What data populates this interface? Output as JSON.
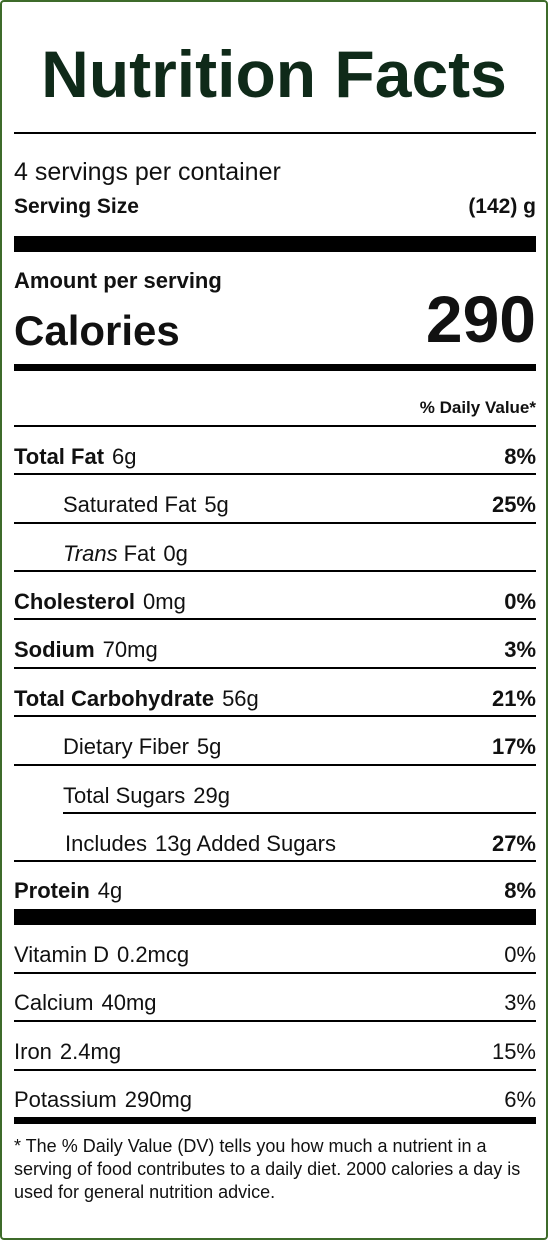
{
  "title": "Nutrition Facts",
  "servings_per_container": "4 servings per container",
  "serving_size": {
    "label": "Serving Size",
    "value": "(142) g"
  },
  "amount_per_serving": "Amount per serving",
  "calories": {
    "label": "Calories",
    "value": "290"
  },
  "daily_value_header": "% Daily Value*",
  "nutrients": {
    "total_fat": {
      "label": "Total Fat",
      "amount": "6g",
      "dv": "8%"
    },
    "saturated_fat": {
      "label": "Saturated Fat",
      "amount": "5g",
      "dv": "25%"
    },
    "trans_fat": {
      "label_italic": "Trans",
      "label": "Fat",
      "amount": "0g"
    },
    "cholesterol": {
      "label": "Cholesterol",
      "amount": "0mg",
      "dv": "0%"
    },
    "sodium": {
      "label": "Sodium",
      "amount": "70mg",
      "dv": "3%"
    },
    "total_carbohydrate": {
      "label": "Total Carbohydrate",
      "amount": "56g",
      "dv": "21%"
    },
    "dietary_fiber": {
      "label": "Dietary Fiber",
      "amount": "5g",
      "dv": "17%"
    },
    "total_sugars": {
      "label": "Total Sugars",
      "amount": "29g"
    },
    "added_sugars": {
      "label_prefix": "Includes",
      "text": "13g Added Sugars",
      "dv": "27%"
    },
    "protein": {
      "label": "Protein",
      "amount": "4g",
      "dv": "8%"
    }
  },
  "vitamins": {
    "vitamin_d": {
      "label": "Vitamin D",
      "amount": "0.2mcg",
      "dv": "0%"
    },
    "calcium": {
      "label": "Calcium",
      "amount": "40mg",
      "dv": "3%"
    },
    "iron": {
      "label": "Iron",
      "amount": "2.4mg",
      "dv": "15%"
    },
    "potassium": {
      "label": "Potassium",
      "amount": "290mg",
      "dv": "6%"
    }
  },
  "footnote": "* The % Daily Value (DV) tells you how much a nutrient in a serving of food contributes to a daily diet. 2000 calories a day is used for general nutrition advice.",
  "colors": {
    "title": "#0f2a19",
    "border": "#3d6b2a",
    "rule": "#000000"
  }
}
